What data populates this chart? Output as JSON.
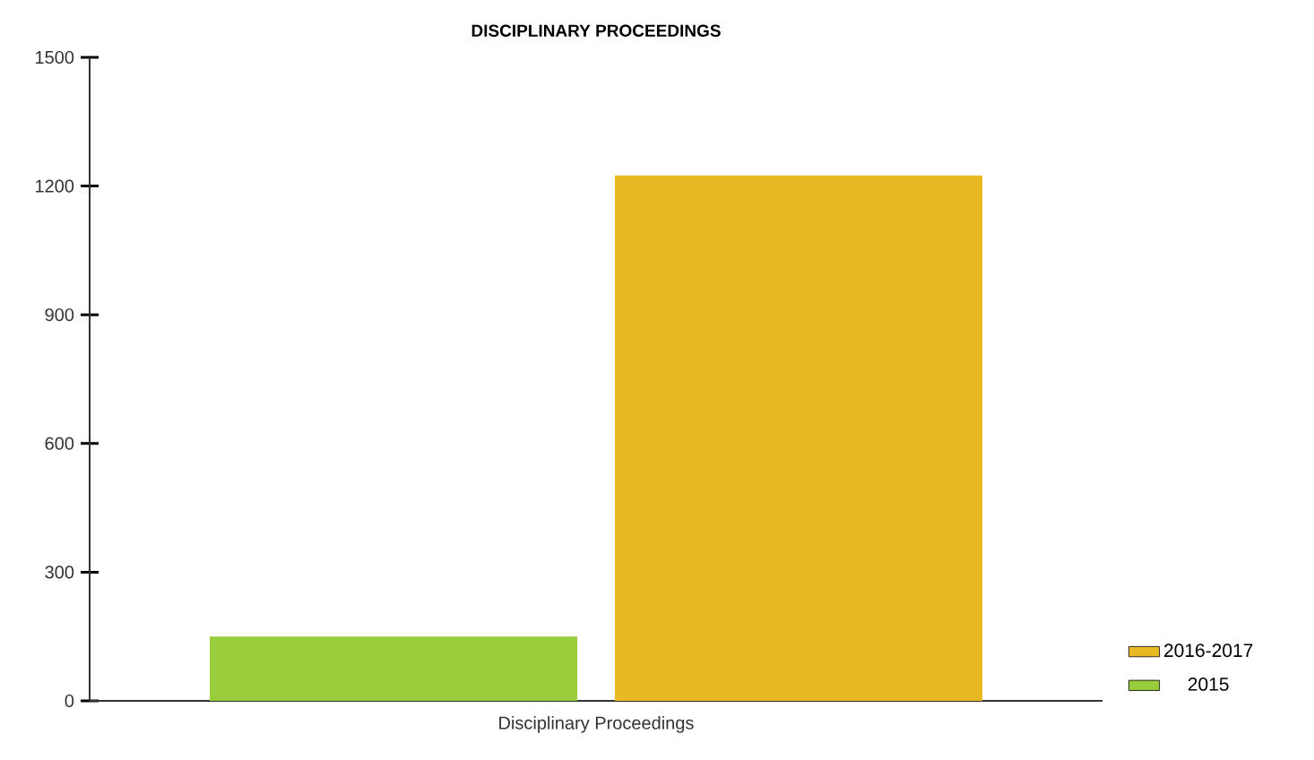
{
  "chart_data": {
    "type": "bar",
    "title": "DISCIPLINARY PROCEEDINGS",
    "categories": [
      "Disciplinary Proceedings"
    ],
    "series": [
      {
        "name": "2015",
        "color": "#9acd3c",
        "values": [
          150
        ]
      },
      {
        "name": "2016-2017",
        "color": "#e8b923",
        "values": [
          1225
        ]
      }
    ],
    "ylim": [
      0,
      1500
    ],
    "yticks": [
      0,
      300,
      600,
      900,
      1200,
      1500
    ],
    "grid": false,
    "legend": "bottom right"
  }
}
